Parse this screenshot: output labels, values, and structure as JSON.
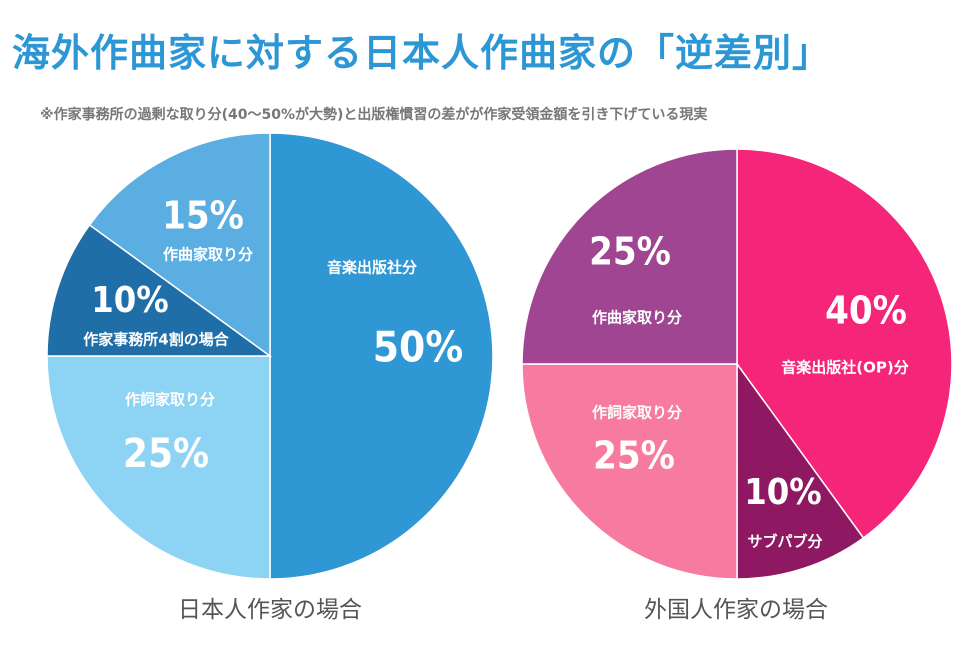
{
  "title": "海外作曲家に対する日本人作曲家の「逆差別」",
  "subtitle": "※作家事務所の過剰な取り分(40〜50%が大勢)と出版権慣習の差がが作家受領金額を引き下げている現実",
  "chart_data": [
    {
      "type": "pie",
      "caption": "日本人作家の場合",
      "slices": [
        {
          "label": "音楽出版社分",
          "value": 50,
          "display": "50%",
          "color": "#2f97d4"
        },
        {
          "label": "作詞家取り分",
          "value": 25,
          "display": "25%",
          "color": "#8dd3f3"
        },
        {
          "label": "作家事務所4割の場合",
          "value": 10,
          "display": "10%",
          "color": "#1f6ea8"
        },
        {
          "label": "作曲家取り分",
          "value": 15,
          "display": "15%",
          "color": "#5aaee2"
        }
      ]
    },
    {
      "type": "pie",
      "caption": "外国人作家の場合",
      "slices": [
        {
          "label": "音楽出版社(OP)分",
          "value": 40,
          "display": "40%",
          "color": "#f5267a"
        },
        {
          "label": "サブパブ分",
          "value": 10,
          "display": "10%",
          "color": "#8e1862"
        },
        {
          "label": "作詞家取り分",
          "value": 25,
          "display": "25%",
          "color": "#f77ba0"
        },
        {
          "label": "作曲家取り分",
          "value": 25,
          "display": "25%",
          "color": "#a04592"
        }
      ]
    }
  ]
}
